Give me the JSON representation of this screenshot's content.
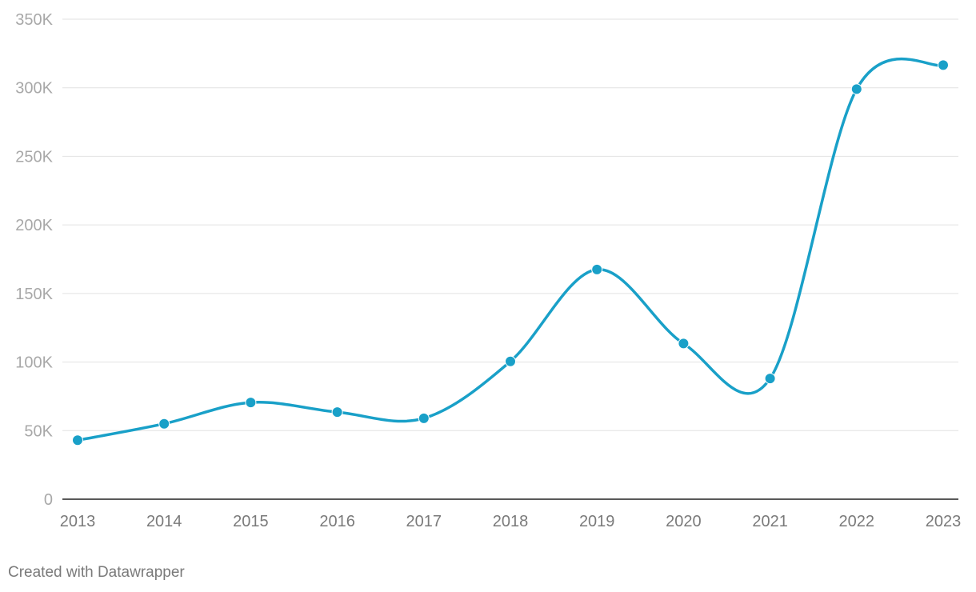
{
  "chart_data": {
    "type": "line",
    "title": "",
    "xlabel": "",
    "ylabel": "",
    "x": [
      "2013",
      "2014",
      "2015",
      "2016",
      "2017",
      "2018",
      "2019",
      "2020",
      "2021",
      "2022",
      "2023"
    ],
    "series": [
      {
        "values": [
          43000,
          55000,
          70500,
          63500,
          59000,
          100500,
          167500,
          113500,
          88000,
          299000,
          316500
        ],
        "color": "#19a0c8"
      }
    ],
    "ylim": [
      0,
      350000
    ],
    "yticks": [
      0,
      50000,
      100000,
      150000,
      200000,
      250000,
      300000,
      350000
    ],
    "ytick_labels": [
      "0",
      "50K",
      "100K",
      "150K",
      "200K",
      "250K",
      "300K",
      "350K"
    ],
    "grid": true,
    "smooth": true,
    "markers": true
  },
  "footer": {
    "credit": "Created with Datawrapper"
  },
  "colors": {
    "line": "#19a0c8",
    "grid": "#e2e2e2",
    "axis": "#222222"
  }
}
